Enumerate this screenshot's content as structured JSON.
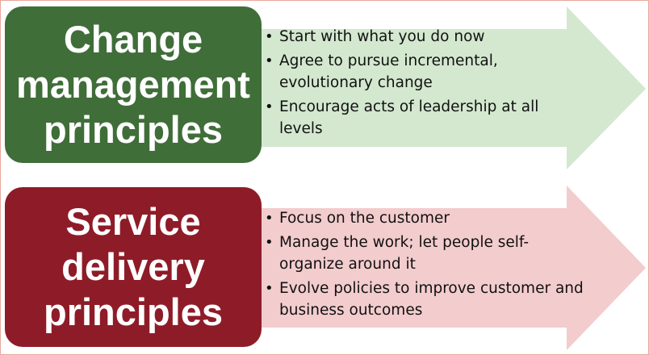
{
  "colors": {
    "green_box": "#3f6e38",
    "green_arrow": "#d3e8cf",
    "red_box": "#8e1c28",
    "red_arrow": "#f3cccd",
    "frame_border": "#e8a89c"
  },
  "sections": [
    {
      "title_lines": [
        "Change",
        "management",
        "principles"
      ],
      "bullets": [
        "Start with what you do now",
        "Agree to pursue incremental, evolutionary change",
        "Encourage acts of leadership at all levels"
      ]
    },
    {
      "title_lines": [
        "Service",
        "delivery",
        "principles"
      ],
      "bullets": [
        "Focus on the customer",
        "Manage the work; let people self-organize around it",
        "Evolve policies to improve customer and business outcomes"
      ]
    }
  ]
}
